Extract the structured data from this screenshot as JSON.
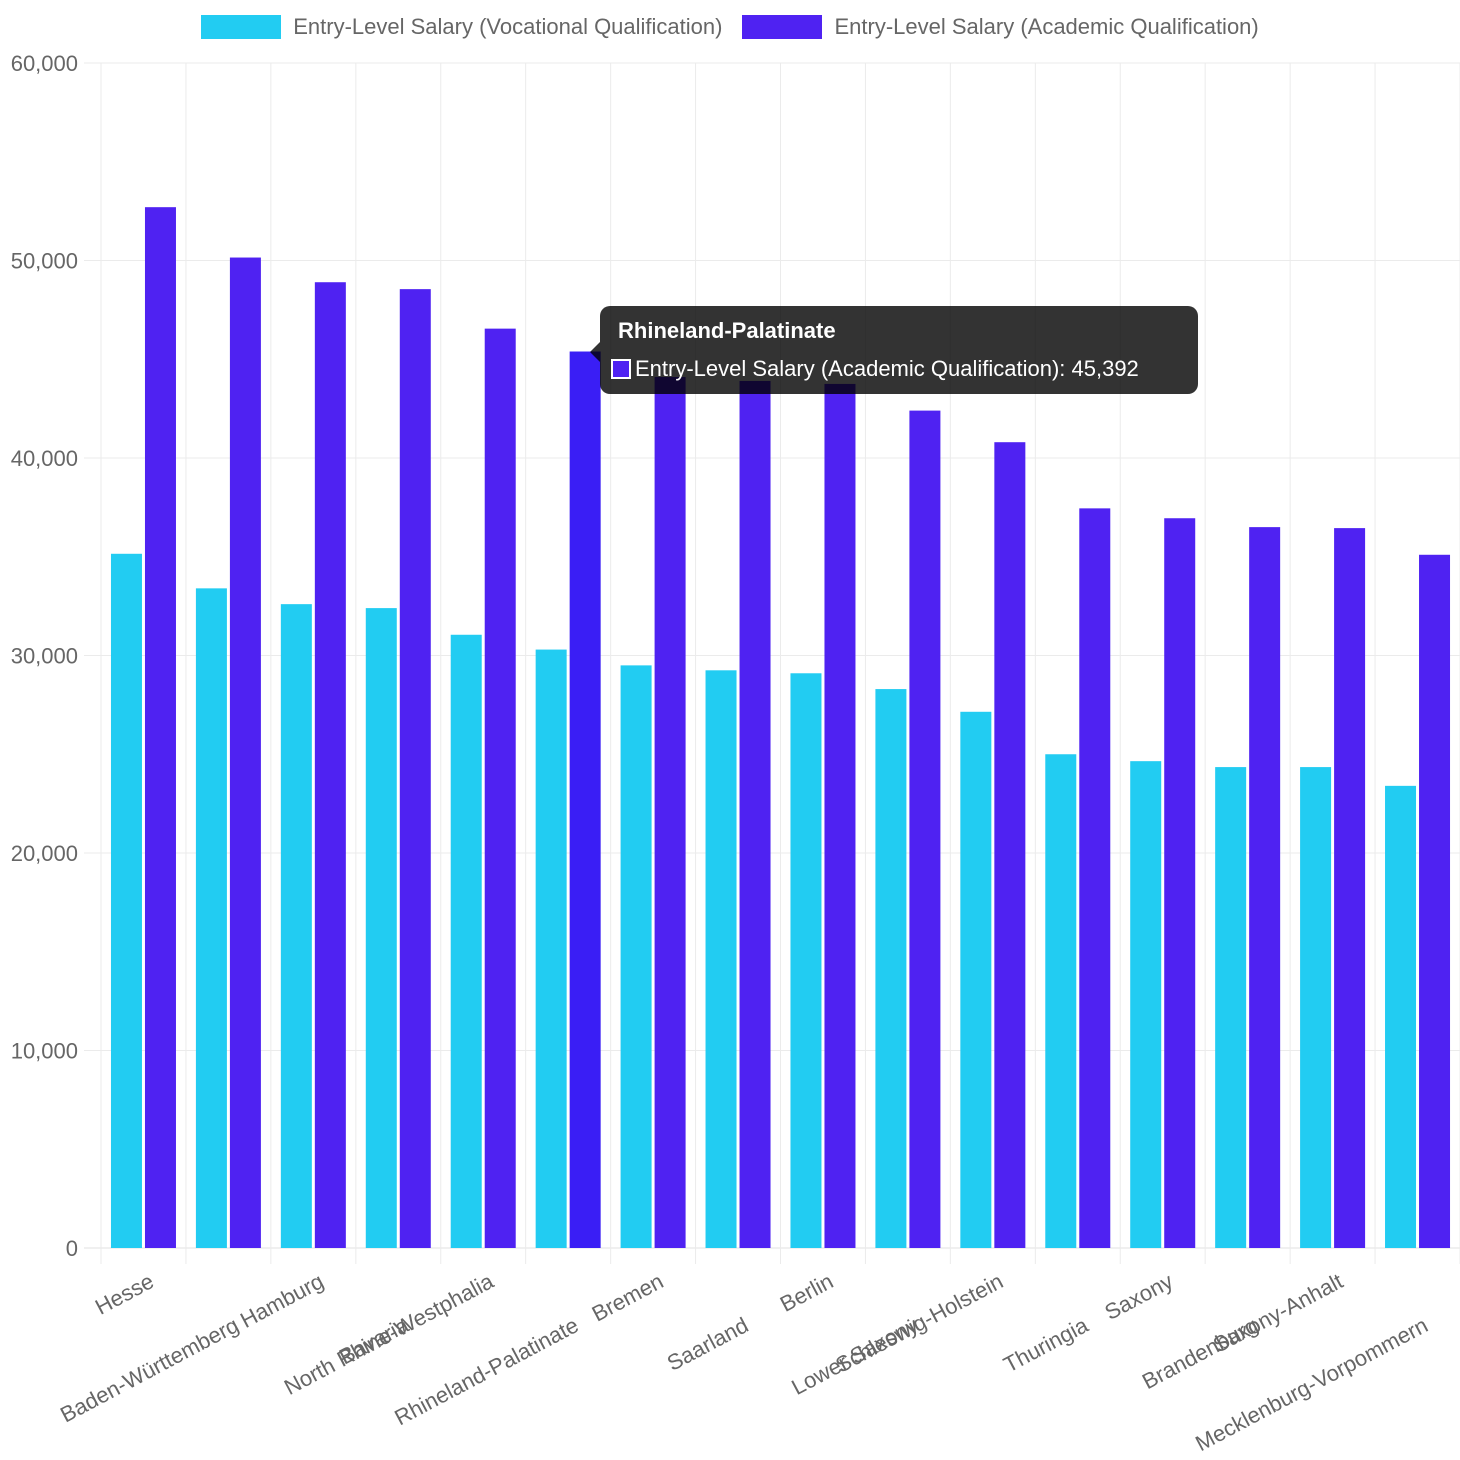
{
  "chart_data": {
    "type": "bar",
    "categories": [
      "Hesse",
      "Baden-Württemberg",
      "Hamburg",
      "Bavaria",
      "North Rhine-Westphalia",
      "Rhineland-Palatinate",
      "Bremen",
      "Saarland",
      "Berlin",
      "Lower Saxony",
      "Schleswig-Holstein",
      "Thuringia",
      "Saxony",
      "Brandenburg",
      "Saxony-Anhalt",
      "Mecklenburg-Vorpommern"
    ],
    "series": [
      {
        "name": "Entry-Level Salary (Vocational Qualification)",
        "color": "#22ccf2",
        "values": [
          35150,
          33400,
          32600,
          32400,
          31050,
          30300,
          29500,
          29250,
          29100,
          28300,
          27150,
          25000,
          24650,
          24350,
          24350,
          23400
        ]
      },
      {
        "name": "Entry-Level Salary (Academic Qualification)",
        "color": "#4f22f2",
        "values": [
          52700,
          50150,
          48900,
          48550,
          46550,
          45392,
          44100,
          43900,
          43750,
          42400,
          40800,
          37450,
          36950,
          36500,
          36450,
          35100
        ]
      }
    ],
    "ylim": [
      0,
      60000
    ],
    "yticks": [
      "0",
      "10,000",
      "20,000",
      "30,000",
      "40,000",
      "50,000",
      "60,000"
    ],
    "grid": true,
    "legend_position": "top",
    "highlight": {
      "category_index": 5,
      "series_index": 1,
      "color": "#3a1ef5"
    }
  },
  "tooltip": {
    "title": "Rhineland-Palatinate",
    "label": "Entry-Level Salary (Academic Qualification): 45,392"
  }
}
